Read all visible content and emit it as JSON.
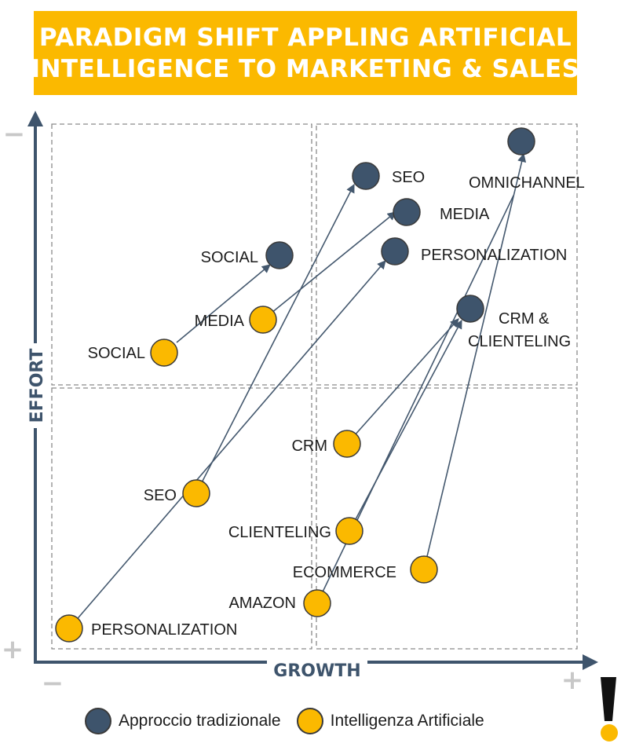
{
  "title": {
    "line1": "PARADIGM SHIFT APPLING ARTIFICIAL",
    "line2": "INTELLIGENCE TO MARKETING & SALES"
  },
  "axes": {
    "y_label": "EFFORT",
    "x_label": "GROWTH",
    "y_top_sign": "−",
    "y_bottom_sign": "+",
    "x_left_sign": "−",
    "x_right_sign": "+"
  },
  "colors": {
    "traditional": "#3e546c",
    "ai": "#fbb900",
    "banner": "#fbb900",
    "axis": "#3e546c",
    "grid": "#8a8a8a",
    "arrow": "#44586e"
  },
  "legend": {
    "traditional": "Approccio tradizionale",
    "ai": "Intelligenza Artificiale"
  },
  "traditional_points": [
    {
      "id": "seo",
      "label": "SEO"
    },
    {
      "id": "omnichannel",
      "label": "OMNICHANNEL"
    },
    {
      "id": "media",
      "label": "MEDIA"
    },
    {
      "id": "social",
      "label": "SOCIAL"
    },
    {
      "id": "personalization",
      "label": "PERSONALIZATION"
    },
    {
      "id": "crm_clienteling",
      "label_line1": "CRM &",
      "label_line2": "CLIENTELING"
    }
  ],
  "ai_points": [
    {
      "id": "media",
      "label": "MEDIA"
    },
    {
      "id": "social",
      "label": "SOCIAL"
    },
    {
      "id": "crm",
      "label": "CRM"
    },
    {
      "id": "seo",
      "label": "SEO"
    },
    {
      "id": "clienteling",
      "label": "CLIENTELING"
    },
    {
      "id": "ecommerce",
      "label": "ECOMMERCE"
    },
    {
      "id": "amazon",
      "label": "AMAZON"
    },
    {
      "id": "personalization",
      "label": "PERSONALIZATION"
    }
  ],
  "exclamation_icon": "exclamation-mark-icon"
}
